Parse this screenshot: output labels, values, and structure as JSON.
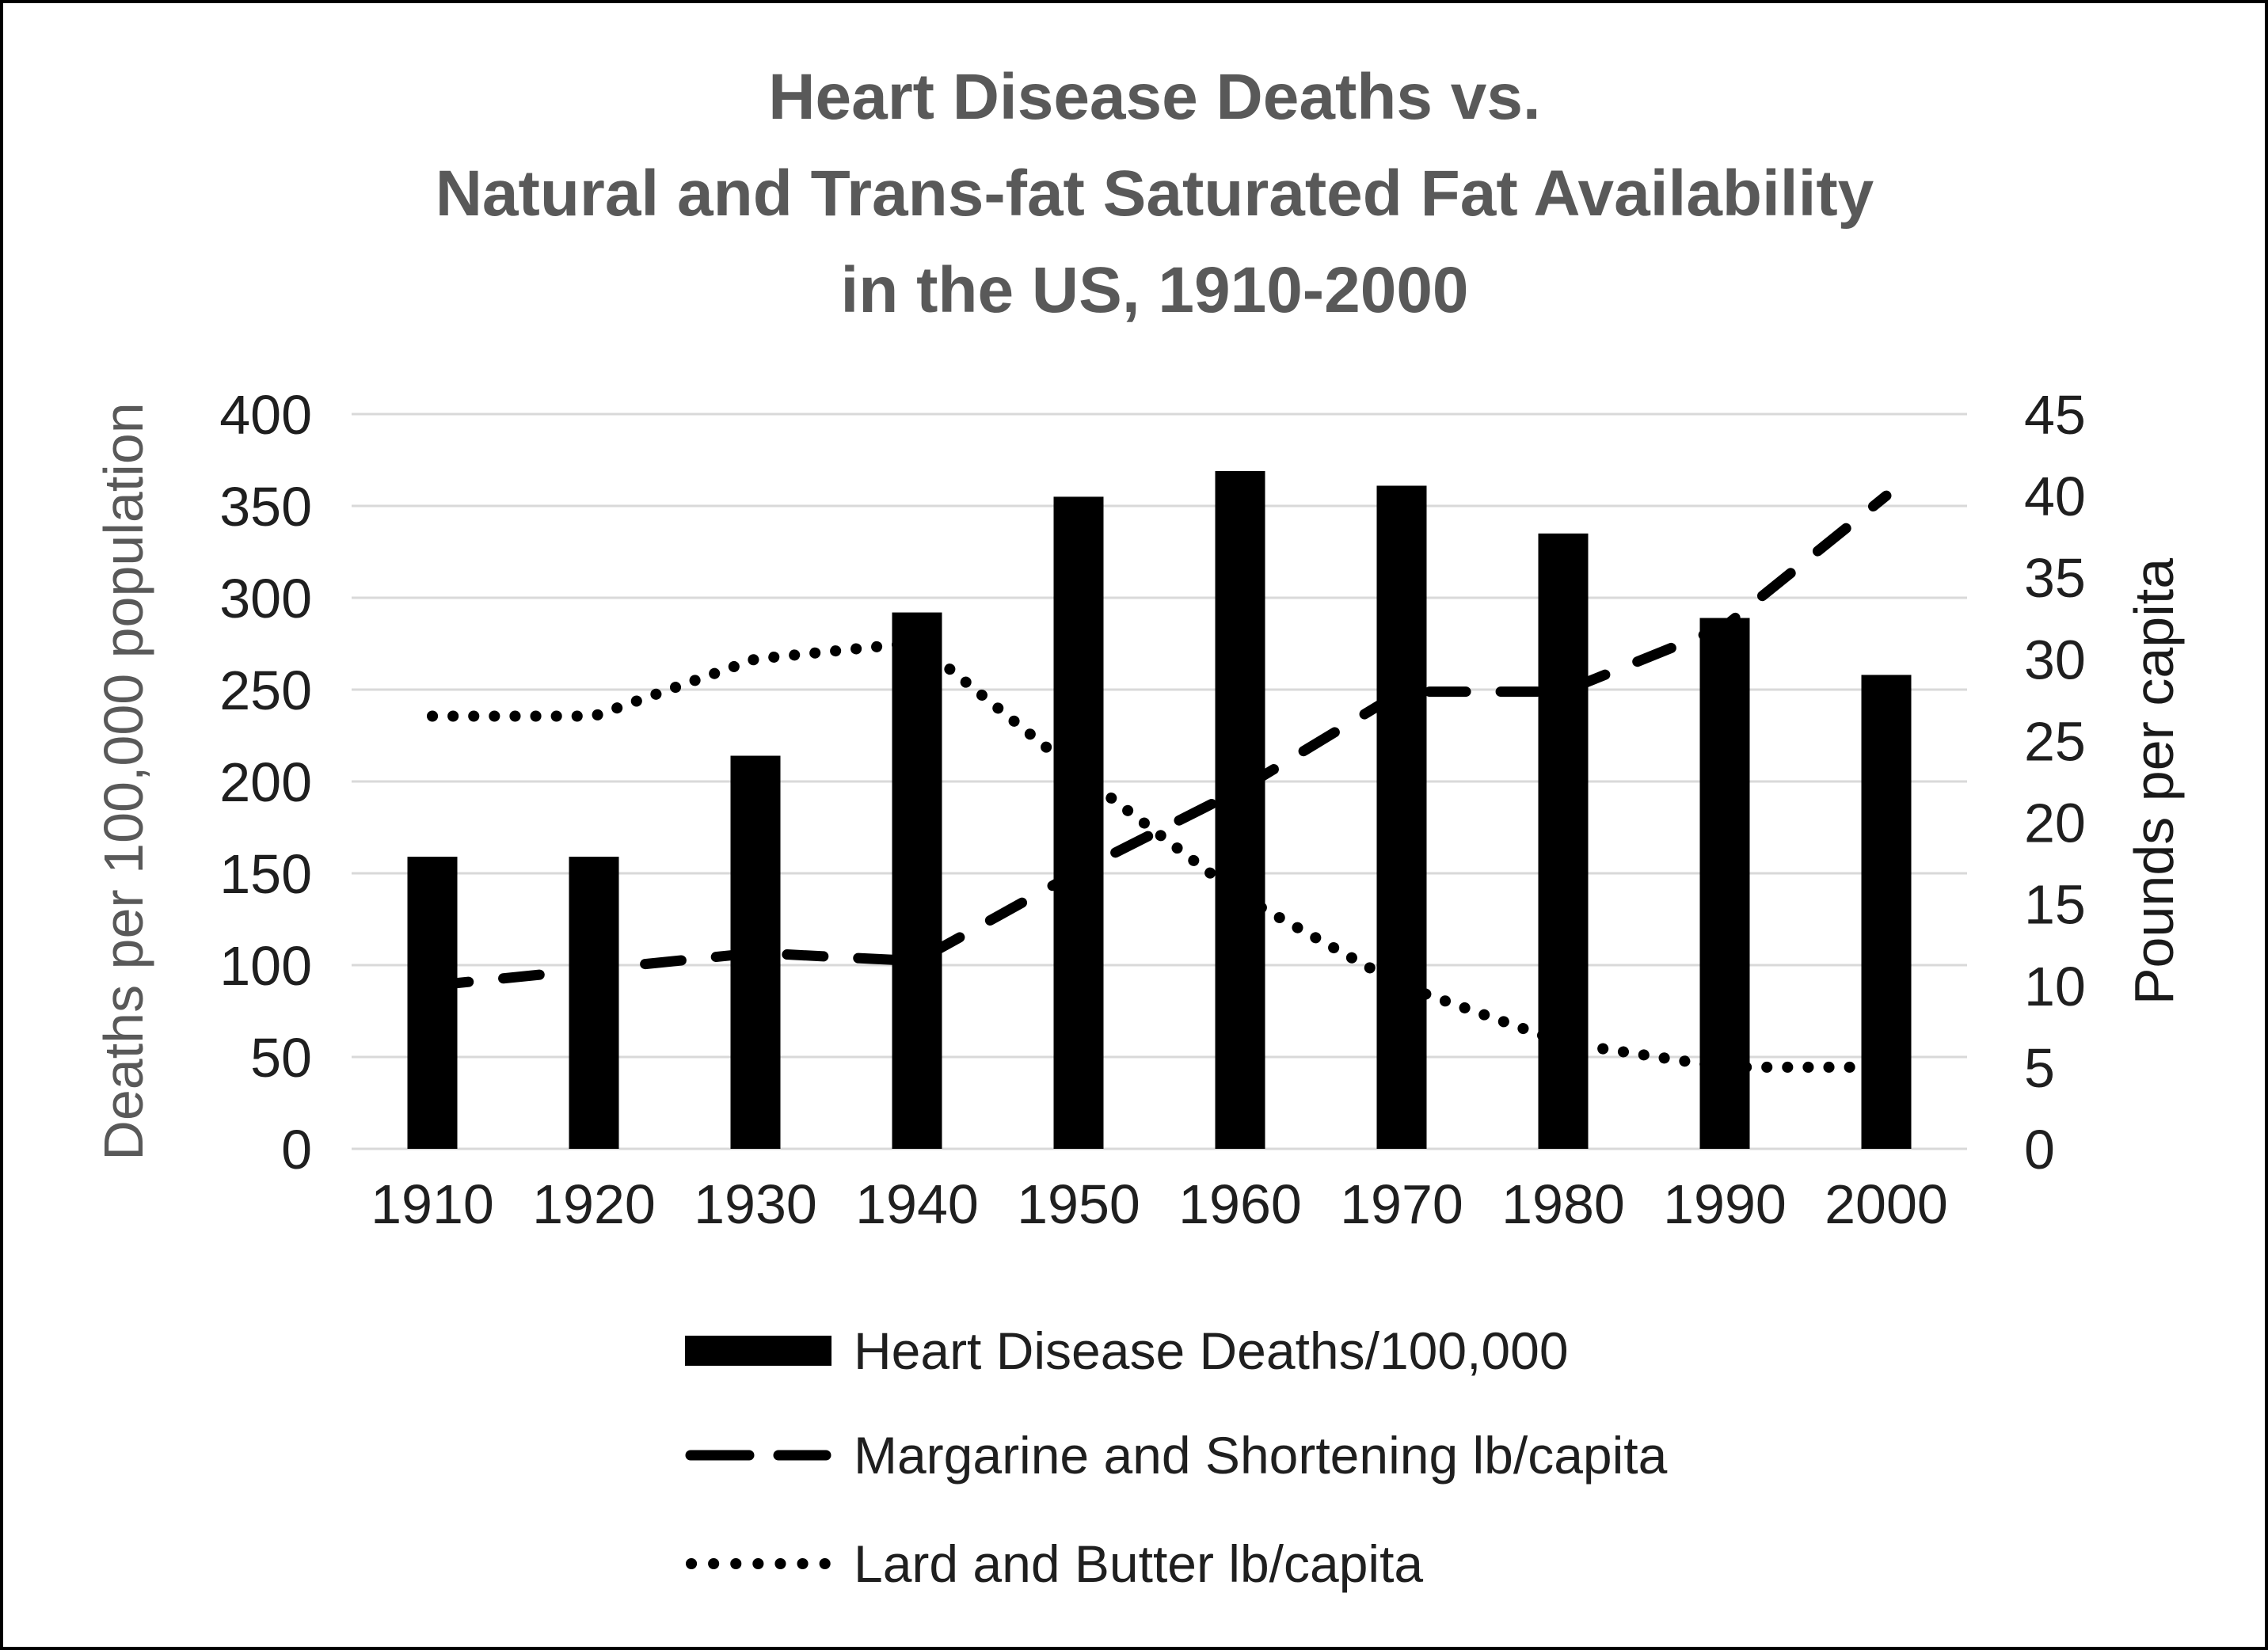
{
  "figure": {
    "title_lines": [
      "Heart Disease Deaths vs.",
      "Natural and Trans-fat Saturated Fat Availability",
      "in the US, 1910-2000"
    ]
  },
  "chart_data": {
    "type": "combo-bar-line",
    "categories": [
      "1910",
      "1920",
      "1930",
      "1940",
      "1950",
      "1960",
      "1970",
      "1980",
      "1990",
      "2000"
    ],
    "series": [
      {
        "name": "Heart Disease Deaths/100,000",
        "type": "bar",
        "axis": "left",
        "color": "#000000",
        "values": [
          159,
          159,
          214,
          292,
          355,
          369,
          361,
          335,
          289,
          258
        ]
      },
      {
        "name": "Margarine and Shortening lb/capita",
        "type": "line",
        "line_style": "dashed",
        "axis": "right",
        "color": "#000000",
        "values": [
          10,
          11,
          12,
          11.5,
          17,
          22,
          28,
          28,
          32,
          40
        ]
      },
      {
        "name": "Lard and Butter lb/capita",
        "type": "line",
        "line_style": "dotted",
        "axis": "right",
        "color": "#000000",
        "values": [
          26.5,
          26.5,
          30,
          31,
          23,
          15.5,
          10,
          6.5,
          5,
          5
        ]
      }
    ],
    "left_axis": {
      "title": "Deaths per 100,000 population",
      "min": 0,
      "max": 400,
      "step": 50,
      "tick_labels": [
        "400",
        "350",
        "300",
        "250",
        "200",
        "150",
        "100",
        "50",
        "0"
      ]
    },
    "right_axis": {
      "title": "Pounds per capita",
      "min": 0,
      "max": 45,
      "step": 5,
      "tick_labels": [
        "45",
        "40",
        "35",
        "30",
        "25",
        "20",
        "15",
        "10",
        "5",
        "0"
      ]
    },
    "grid": true,
    "legend_position": "bottom-left",
    "colors": {
      "background": "#ffffff",
      "figure_border": "#000000",
      "gridline": "#d9d9d9",
      "title_text": "#595959",
      "tick_text": "#1f1f1f",
      "left_axis_title_text": "#595959",
      "right_axis_title_text": "#1a1a1a",
      "series_ink": "#000000"
    }
  }
}
